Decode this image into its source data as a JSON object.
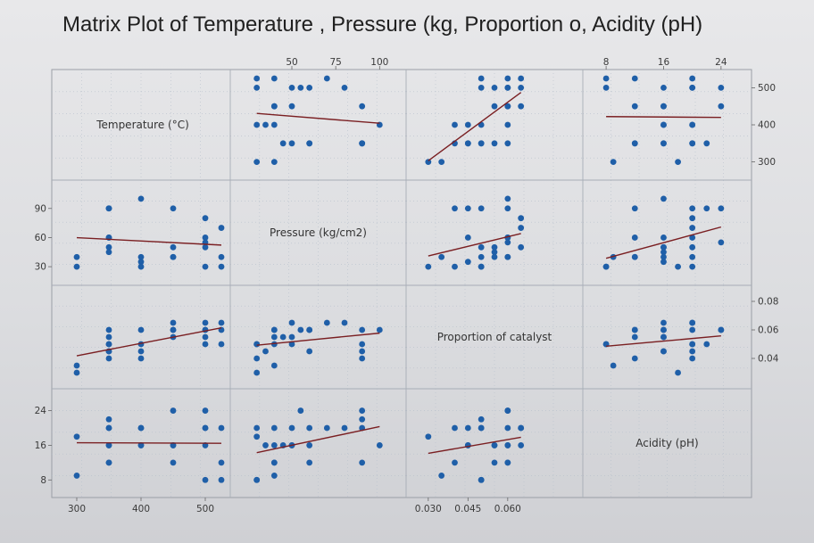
{
  "chart_data": {
    "type": "scatter",
    "subtype": "matrix_plot",
    "title": "Matrix Plot of Temperature , Pressure (kg, Proportion o, Acidity (pH)",
    "variables": [
      {
        "key": "temp",
        "label": "Temperature (°C)",
        "range": [
          275,
          525
        ],
        "ticks": [
          300,
          400,
          500
        ]
      },
      {
        "key": "press",
        "label": "Pressure (kg/cm2)",
        "range": [
          20,
          110
        ],
        "ticks": [
          50,
          75,
          100
        ],
        "left_ticks": [
          30,
          60,
          90
        ]
      },
      {
        "key": "prop",
        "label": "Proportion of catalyst",
        "range": [
          0.025,
          0.085
        ],
        "ticks": [
          0.03,
          0.045,
          0.06,
          0.08
        ],
        "right_ticks": [
          0.04,
          0.06,
          0.08
        ]
      },
      {
        "key": "ph",
        "label": "Acidity (pH)",
        "range": [
          6,
          27
        ],
        "ticks": [
          8,
          16,
          24
        ]
      }
    ],
    "tick_labels": {
      "top": [
        "50",
        "75",
        "100",
        "8",
        "16",
        "24"
      ],
      "bottom": [
        "300",
        "400",
        "500",
        "0.030",
        "0.045",
        "0.060"
      ],
      "left": [
        "90",
        "60",
        "30",
        "24",
        "16",
        "8"
      ],
      "right": [
        "500",
        "400",
        "300",
        "0.08",
        "0.06",
        "0.04"
      ]
    },
    "observations": [
      {
        "temp": 300,
        "press": 30,
        "prop": 0.03,
        "ph": 18
      },
      {
        "temp": 300,
        "press": 40,
        "prop": 0.035,
        "ph": 9
      },
      {
        "temp": 350,
        "press": 90,
        "prop": 0.04,
        "ph": 12
      },
      {
        "temp": 350,
        "press": 90,
        "prop": 0.045,
        "ph": 20
      },
      {
        "temp": 350,
        "press": 90,
        "prop": 0.05,
        "ph": 22
      },
      {
        "temp": 350,
        "press": 60,
        "prop": 0.045,
        "ph": 16
      },
      {
        "temp": 350,
        "press": 60,
        "prop": 0.06,
        "ph": 12
      },
      {
        "temp": 350,
        "press": 50,
        "prop": 0.05,
        "ph": 20
      },
      {
        "temp": 350,
        "press": 45,
        "prop": 0.055,
        "ph": 16
      },
      {
        "temp": 400,
        "press": 100,
        "prop": 0.06,
        "ph": 16
      },
      {
        "temp": 400,
        "press": 40,
        "prop": 0.05,
        "ph": 20
      },
      {
        "temp": 400,
        "press": 35,
        "prop": 0.045,
        "ph": 16
      },
      {
        "temp": 400,
        "press": 30,
        "prop": 0.04,
        "ph": 20
      },
      {
        "temp": 450,
        "press": 90,
        "prop": 0.06,
        "ph": 24
      },
      {
        "temp": 450,
        "press": 50,
        "prop": 0.065,
        "ph": 16
      },
      {
        "temp": 450,
        "press": 40,
        "prop": 0.06,
        "ph": 16
      },
      {
        "temp": 450,
        "press": 40,
        "prop": 0.055,
        "ph": 12
      },
      {
        "temp": 500,
        "press": 80,
        "prop": 0.065,
        "ph": 20
      },
      {
        "temp": 500,
        "press": 60,
        "prop": 0.06,
        "ph": 20
      },
      {
        "temp": 500,
        "press": 55,
        "prop": 0.06,
        "ph": 24
      },
      {
        "temp": 500,
        "press": 50,
        "prop": 0.055,
        "ph": 16
      },
      {
        "temp": 500,
        "press": 30,
        "prop": 0.05,
        "ph": 8
      },
      {
        "temp": 525,
        "press": 70,
        "prop": 0.065,
        "ph": 20
      },
      {
        "temp": 525,
        "press": 40,
        "prop": 0.06,
        "ph": 12
      },
      {
        "temp": 525,
        "press": 30,
        "prop": 0.05,
        "ph": 8
      }
    ],
    "dot_color": "#1f5fa8",
    "fit_line_color": "#7a1f22",
    "grid": true
  }
}
